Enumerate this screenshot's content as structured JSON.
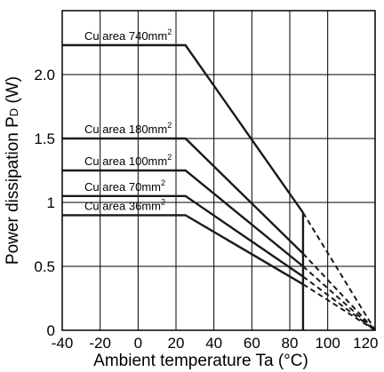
{
  "chart_data": {
    "type": "line",
    "xlabel": "Ambient temperature Ta (°C)",
    "ylabel": {
      "main": "Power dissipation P",
      "subscript": "D",
      "unit": " (W)"
    },
    "xlim": [
      -40,
      125
    ],
    "ylim": [
      0,
      2.5
    ],
    "x_ticks": [
      "-40",
      "-20",
      "0",
      "20",
      "40",
      "60",
      "80",
      "100",
      "120"
    ],
    "x_tick_values": [
      -40,
      -20,
      0,
      20,
      40,
      60,
      80,
      100,
      120
    ],
    "y_ticks": [
      "0",
      "0.5",
      "1",
      "1.5",
      "2.0"
    ],
    "y_tick_values": [
      0,
      0.5,
      1,
      1.5,
      2.0
    ],
    "x_gridlines": [
      -20,
      0,
      20,
      40,
      60,
      80,
      100
    ],
    "y_gridlines": [
      0.5,
      1,
      1.5,
      2.0
    ],
    "grid": true,
    "series": [
      {
        "name": "Cu area 740mm",
        "superscript": "2",
        "solid": [
          [
            -40,
            2.23
          ],
          [
            25,
            2.23
          ],
          [
            87,
            0.92
          ]
        ],
        "dashed": [
          [
            87,
            0.92
          ],
          [
            125,
            0
          ]
        ]
      },
      {
        "name": "Cu area 180mm",
        "superscript": "2",
        "solid": [
          [
            -40,
            1.5
          ],
          [
            25,
            1.5
          ],
          [
            87,
            0.6
          ]
        ],
        "dashed": [
          [
            87,
            0.6
          ],
          [
            125,
            0
          ]
        ]
      },
      {
        "name": "Cu area 100mm",
        "superscript": "2",
        "solid": [
          [
            -40,
            1.25
          ],
          [
            25,
            1.25
          ],
          [
            87,
            0.5
          ]
        ],
        "dashed": [
          [
            87,
            0.5
          ],
          [
            125,
            0
          ]
        ]
      },
      {
        "name": "Cu area 70mm",
        "superscript": "2",
        "solid": [
          [
            -40,
            1.05
          ],
          [
            25,
            1.05
          ],
          [
            87,
            0.42
          ]
        ],
        "dashed": [
          [
            87,
            0.42
          ],
          [
            125,
            0
          ]
        ]
      },
      {
        "name": "Cu area 36mm",
        "superscript": "2",
        "solid": [
          [
            -40,
            0.9
          ],
          [
            25,
            0.9
          ],
          [
            87,
            0.36
          ]
        ],
        "dashed": [
          [
            87,
            0.36
          ],
          [
            125,
            0
          ]
        ]
      }
    ],
    "vertical_marker": {
      "x": 87,
      "y_from": 0,
      "y_to": 0.92
    }
  }
}
